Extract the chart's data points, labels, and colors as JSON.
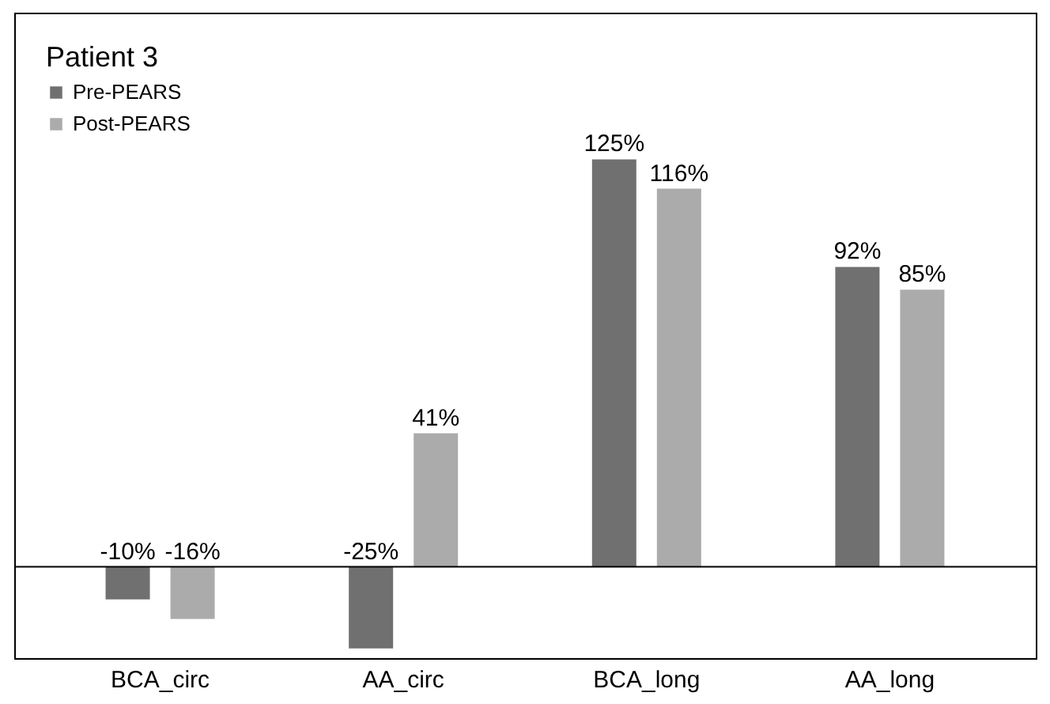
{
  "chart_data": {
    "type": "bar",
    "legend_title": "Patient 3",
    "legend": "top left",
    "grid": false,
    "categories": [
      "BCA_circ",
      "AA_circ",
      "BCA_long",
      "AA_long"
    ],
    "series": [
      {
        "name": "Pre-PEARS",
        "color": "#707070",
        "values": [
          -10,
          -25,
          125,
          92
        ],
        "value_labels": [
          "-10%",
          "-25%",
          "125%",
          "92%"
        ]
      },
      {
        "name": "Post-PEARS",
        "color": "#ababab",
        "values": [
          -16,
          41,
          116,
          85
        ],
        "value_labels": [
          "-16%",
          "41%",
          "116%",
          "85%"
        ]
      }
    ]
  }
}
